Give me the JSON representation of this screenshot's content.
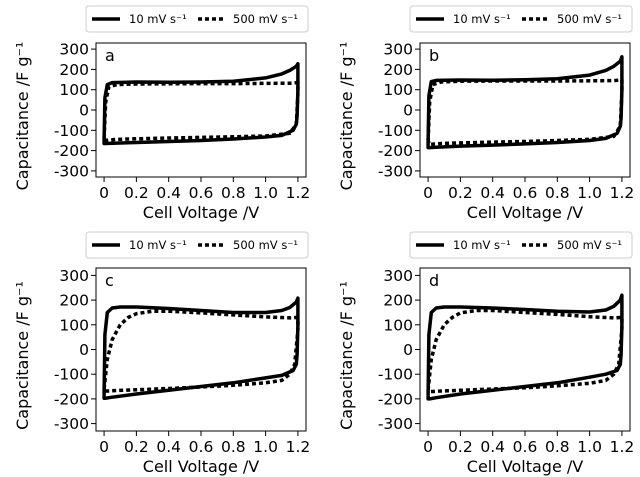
{
  "chart_data": [
    {
      "type": "line",
      "panel_label": "a",
      "xlabel": "Cell Voltage /V",
      "ylabel": "Capacitance /F g⁻¹",
      "xlim": [
        -0.05,
        1.25
      ],
      "ylim": [
        -330,
        330
      ],
      "xticks": [
        "0",
        "0.2",
        "0.4",
        "0.6",
        "0.8",
        "1.0",
        "1.2"
      ],
      "yticks": [
        "300",
        "200",
        "100",
        "0",
        "-100",
        "-200",
        "-300"
      ],
      "legend": {
        "placement": "top",
        "entries": [
          "10 mV s⁻¹",
          "500 mV s⁻¹"
        ]
      },
      "series": [
        {
          "name": "10 mV s⁻¹",
          "style": "solid",
          "x": [
            0,
            0.005,
            0.02,
            0.05,
            0.2,
            0.4,
            0.6,
            0.8,
            1.0,
            1.1,
            1.15,
            1.19,
            1.2,
            1.2,
            1.195,
            1.19,
            1.17,
            1.1,
            1.0,
            0.8,
            0.6,
            0.4,
            0.2,
            0.05,
            0.01,
            0,
            0
          ],
          "y": [
            -150,
            60,
            125,
            135,
            138,
            137,
            138,
            142,
            158,
            178,
            195,
            215,
            228,
            100,
            -30,
            -70,
            -100,
            -125,
            -133,
            -143,
            -150,
            -155,
            -160,
            -164,
            -165,
            -165,
            -150
          ]
        },
        {
          "name": "500 mV s⁻¹",
          "style": "dotted",
          "x": [
            0,
            0.01,
            0.03,
            0.08,
            0.2,
            0.4,
            0.6,
            0.8,
            1.0,
            1.15,
            1.2,
            1.2,
            1.19,
            1.15,
            1.0,
            0.8,
            0.6,
            0.4,
            0.2,
            0.08,
            0.03,
            0.01,
            0
          ],
          "y": [
            -140,
            40,
            115,
            125,
            128,
            129,
            130,
            130,
            131,
            132,
            135,
            80,
            -70,
            -115,
            -128,
            -132,
            -135,
            -138,
            -142,
            -145,
            -148,
            -150,
            -140
          ]
        }
      ]
    },
    {
      "type": "line",
      "panel_label": "b",
      "xlabel": "Cell Voltage /V",
      "ylabel": "Capacitance /F g⁻¹",
      "xlim": [
        -0.05,
        1.25
      ],
      "ylim": [
        -330,
        330
      ],
      "xticks": [
        "0",
        "0.2",
        "0.4",
        "0.6",
        "0.8",
        "1.0",
        "1.2"
      ],
      "yticks": [
        "300",
        "200",
        "100",
        "0",
        "-100",
        "-200",
        "-300"
      ],
      "legend": {
        "placement": "top",
        "entries": [
          "10 mV s⁻¹",
          "500 mV s⁻¹"
        ]
      },
      "series": [
        {
          "name": "10 mV s⁻¹",
          "style": "solid",
          "x": [
            0,
            0.005,
            0.02,
            0.05,
            0.2,
            0.4,
            0.6,
            0.8,
            1.0,
            1.1,
            1.15,
            1.19,
            1.2,
            1.2,
            1.195,
            1.19,
            1.17,
            1.1,
            1.0,
            0.8,
            0.6,
            0.4,
            0.2,
            0.05,
            0.01,
            0,
            0
          ],
          "y": [
            -160,
            70,
            140,
            146,
            148,
            147,
            149,
            154,
            172,
            195,
            215,
            240,
            262,
            100,
            -40,
            -80,
            -115,
            -140,
            -150,
            -160,
            -167,
            -173,
            -178,
            -183,
            -185,
            -185,
            -160
          ]
        },
        {
          "name": "500 mV s⁻¹",
          "style": "dotted",
          "x": [
            0,
            0.01,
            0.03,
            0.08,
            0.2,
            0.4,
            0.6,
            0.8,
            1.0,
            1.15,
            1.2,
            1.2,
            1.19,
            1.15,
            1.0,
            0.8,
            0.6,
            0.4,
            0.2,
            0.08,
            0.03,
            0.01,
            0
          ],
          "y": [
            -150,
            40,
            125,
            138,
            142,
            143,
            143,
            143,
            144,
            145,
            148,
            90,
            -80,
            -130,
            -145,
            -150,
            -155,
            -158,
            -162,
            -165,
            -168,
            -170,
            -150
          ]
        }
      ]
    },
    {
      "type": "line",
      "panel_label": "c",
      "xlabel": "Cell Voltage /V",
      "ylabel": "Capacitance /F g⁻¹",
      "xlim": [
        -0.05,
        1.25
      ],
      "ylim": [
        -330,
        330
      ],
      "xticks": [
        "0",
        "0.2",
        "0.4",
        "0.6",
        "0.8",
        "1.0",
        "1.2"
      ],
      "yticks": [
        "300",
        "200",
        "100",
        "0",
        "-100",
        "-200",
        "-300"
      ],
      "legend": {
        "placement": "top",
        "entries": [
          "10 mV s⁻¹",
          "500 mV s⁻¹"
        ]
      },
      "series": [
        {
          "name": "10 mV s⁻¹",
          "style": "solid",
          "x": [
            0,
            0.005,
            0.02,
            0.05,
            0.1,
            0.2,
            0.4,
            0.6,
            0.8,
            1.0,
            1.1,
            1.15,
            1.19,
            1.2,
            1.2,
            1.195,
            1.19,
            1.17,
            1.1,
            1.0,
            0.8,
            0.6,
            0.4,
            0.2,
            0.05,
            0.01,
            0,
            0
          ],
          "y": [
            -180,
            60,
            150,
            168,
            172,
            172,
            166,
            158,
            150,
            150,
            158,
            170,
            192,
            208,
            100,
            -20,
            -60,
            -85,
            -105,
            -115,
            -135,
            -150,
            -165,
            -180,
            -193,
            -197,
            -197,
            -180
          ]
        },
        {
          "name": "500 mV s⁻¹",
          "style": "dotted",
          "x": [
            0,
            0.02,
            0.05,
            0.1,
            0.15,
            0.2,
            0.3,
            0.4,
            0.6,
            0.8,
            1.0,
            1.15,
            1.2,
            1.2,
            1.18,
            1.15,
            1.1,
            1.0,
            0.8,
            0.6,
            0.4,
            0.2,
            0.08,
            0.03,
            0.01,
            0
          ],
          "y": [
            -160,
            -40,
            40,
            100,
            130,
            145,
            155,
            155,
            148,
            140,
            132,
            128,
            130,
            80,
            -60,
            -100,
            -125,
            -135,
            -145,
            -152,
            -158,
            -163,
            -166,
            -168,
            -168,
            -160
          ]
        }
      ]
    },
    {
      "type": "line",
      "panel_label": "d",
      "xlabel": "Cell Voltage /V",
      "ylabel": "Capacitance /F g⁻¹",
      "xlim": [
        -0.05,
        1.25
      ],
      "ylim": [
        -330,
        330
      ],
      "xticks": [
        "0",
        "0.2",
        "0.4",
        "0.6",
        "0.8",
        "1.0",
        "1.2"
      ],
      "yticks": [
        "300",
        "200",
        "100",
        "0",
        "-100",
        "-200",
        "-300"
      ],
      "legend": {
        "placement": "top",
        "entries": [
          "10 mV s⁻¹",
          "500 mV s⁻¹"
        ]
      },
      "series": [
        {
          "name": "10 mV s⁻¹",
          "style": "solid",
          "x": [
            0,
            0.005,
            0.02,
            0.05,
            0.1,
            0.2,
            0.4,
            0.6,
            0.8,
            1.0,
            1.1,
            1.15,
            1.19,
            1.2,
            1.2,
            1.195,
            1.19,
            1.17,
            1.1,
            1.0,
            0.8,
            0.6,
            0.4,
            0.2,
            0.05,
            0.01,
            0,
            0
          ],
          "y": [
            -185,
            60,
            150,
            168,
            172,
            172,
            168,
            162,
            155,
            152,
            160,
            175,
            200,
            220,
            100,
            -20,
            -60,
            -85,
            -100,
            -112,
            -135,
            -150,
            -165,
            -180,
            -195,
            -200,
            -200,
            -185
          ]
        },
        {
          "name": "500 mV s⁻¹",
          "style": "dotted",
          "x": [
            0,
            0.02,
            0.05,
            0.1,
            0.15,
            0.2,
            0.3,
            0.4,
            0.6,
            0.8,
            1.0,
            1.15,
            1.2,
            1.2,
            1.18,
            1.15,
            1.1,
            1.0,
            0.8,
            0.6,
            0.4,
            0.2,
            0.08,
            0.03,
            0.01,
            0
          ],
          "y": [
            -165,
            -40,
            40,
            100,
            130,
            148,
            158,
            158,
            150,
            142,
            133,
            128,
            130,
            80,
            -60,
            -100,
            -125,
            -137,
            -147,
            -155,
            -160,
            -165,
            -168,
            -170,
            -170,
            -165
          ]
        }
      ]
    }
  ]
}
